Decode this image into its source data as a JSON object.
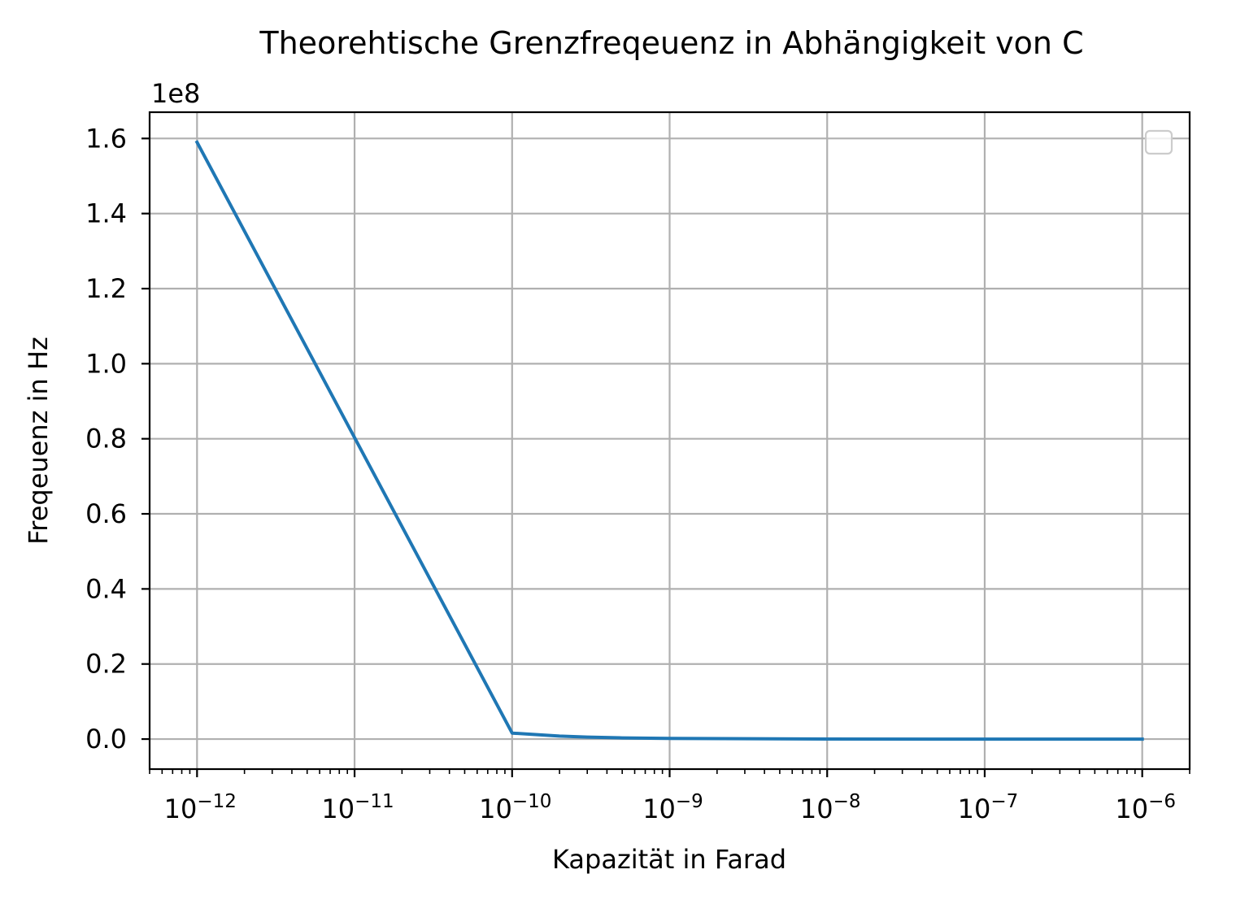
{
  "chart_data": {
    "type": "line",
    "title": "Theorehtische Grenzfreqeuenz in Abhängigkeit von C",
    "xlabel": "Kapazität in Farad",
    "ylabel": "Freqeuenz in Hz",
    "y_offset_label": "1e8",
    "x_scale": "log",
    "x_ticks": [
      {
        "value": 1e-12,
        "base": "10",
        "exp": "−12"
      },
      {
        "value": 1e-11,
        "base": "10",
        "exp": "−11"
      },
      {
        "value": 1e-10,
        "base": "10",
        "exp": "−10"
      },
      {
        "value": 1e-09,
        "base": "10",
        "exp": "−9"
      },
      {
        "value": 1e-08,
        "base": "10",
        "exp": "−8"
      },
      {
        "value": 1e-07,
        "base": "10",
        "exp": "−7"
      },
      {
        "value": 1e-06,
        "base": "10",
        "exp": "−6"
      }
    ],
    "y_ticks": [
      {
        "value": 0.0,
        "label": "0.0"
      },
      {
        "value": 0.2,
        "label": "0.2"
      },
      {
        "value": 0.4,
        "label": "0.4"
      },
      {
        "value": 0.6,
        "label": "0.6"
      },
      {
        "value": 0.8,
        "label": "0.8"
      },
      {
        "value": 1.0,
        "label": "1.0"
      },
      {
        "value": 1.2,
        "label": "1.2"
      },
      {
        "value": 1.4,
        "label": "1.4"
      },
      {
        "value": 1.6,
        "label": "1.6"
      }
    ],
    "xlim": [
      5e-13,
      2e-06
    ],
    "ylim": [
      -0.08,
      1.67
    ],
    "grid": true,
    "legend": {
      "placement": "upper-right",
      "entries": []
    },
    "series": [
      {
        "color": "#1f77b4",
        "x": [
          1e-12,
          1e-10,
          2e-10,
          3e-10,
          5e-10,
          1e-09,
          1e-08,
          1e-07,
          1e-06
        ],
        "y": [
          1.59,
          0.0159,
          0.008,
          0.0053,
          0.0032,
          0.0016,
          0.00016,
          1.6e-05,
          1.6e-06
        ]
      }
    ]
  }
}
